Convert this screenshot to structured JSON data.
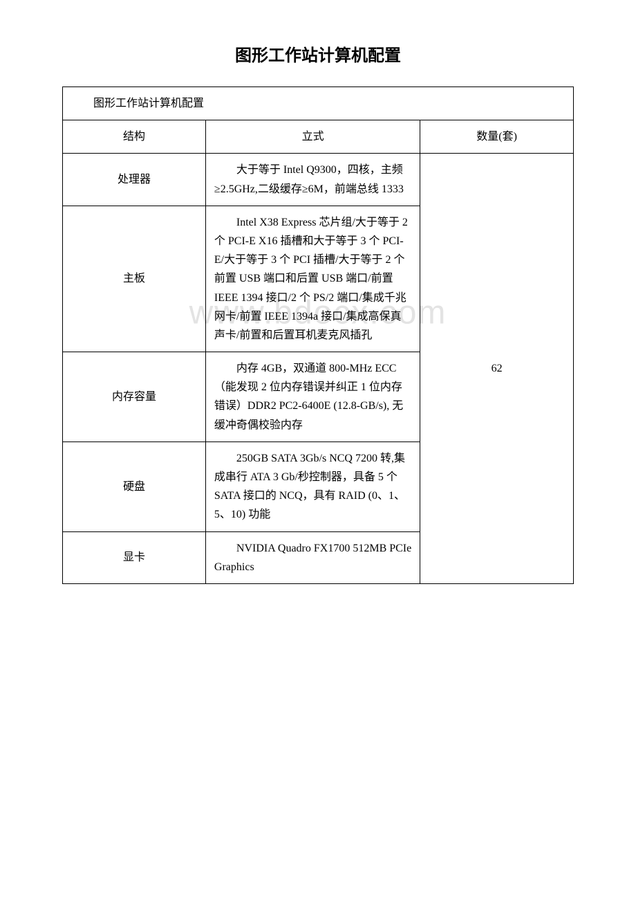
{
  "title": "图形工作站计算机配置",
  "watermark": "www.bdocx.com",
  "table": {
    "caption": "图形工作站计算机配置",
    "headers": {
      "structure": "结构",
      "form_factor": "立式",
      "quantity_label": "数量(套)"
    },
    "quantity_value": "62",
    "rows": [
      {
        "label": "处理器",
        "spec": "大于等于 Intel Q9300，四核，主频 ≥2.5GHz,二级缓存≥6M，前端总线 1333"
      },
      {
        "label": "主板",
        "spec": "Intel X38 Express 芯片组/大于等于 2 个 PCI-E X16 插槽和大于等于 3 个 PCI-E/大于等于 3 个 PCI 插槽/大于等于 2 个前置 USB 端口和后置 USB 端口/前置 IEEE 1394 接口/2 个 PS/2 端口/集成千兆网卡/前置 IEEE 1394a 接口/集成高保真声卡/前置和后置耳机麦克风插孔"
      },
      {
        "label": "内存容量",
        "spec": "内存 4GB，双通道 800-MHz ECC（能发现 2 位内存错误并纠正 1 位内存错误）DDR2 PC2-6400E (12.8-GB/s), 无缓冲奇偶校验内存"
      },
      {
        "label": "硬盘",
        "spec": "250GB SATA 3Gb/s NCQ 7200 转,集成串行 ATA 3 Gb/秒控制器，具备 5 个 SATA 接口的 NCQ，具有 RAID (0、1、5、10) 功能"
      },
      {
        "label": "显卡",
        "spec": "NVIDIA Quadro FX1700 512MB PCIe Graphics"
      }
    ]
  }
}
